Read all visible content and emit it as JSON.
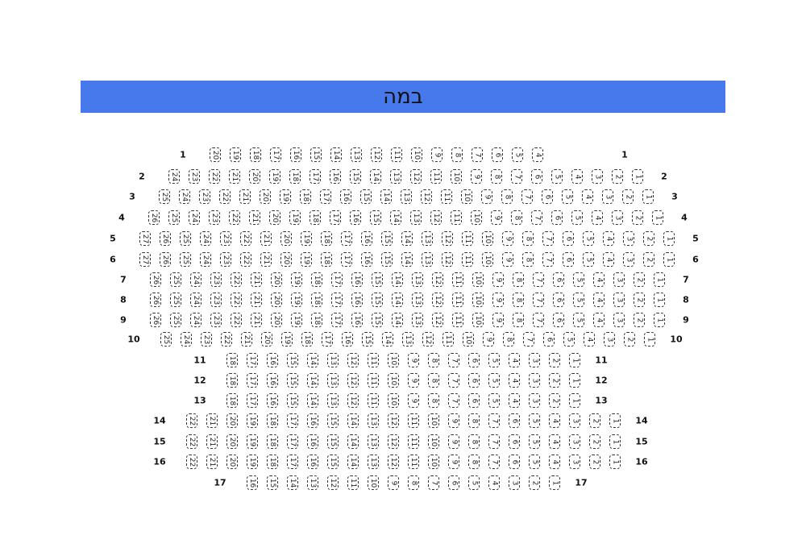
{
  "stage": {
    "label": "במה",
    "color": "#4779ED"
  },
  "rows": [
    {
      "label": "1",
      "seats": [
        20,
        19,
        18,
        17,
        16,
        15,
        14,
        13,
        12,
        11,
        10,
        9,
        8,
        7,
        6,
        5,
        4
      ]
    },
    {
      "label": "2",
      "seats": [
        24,
        23,
        22,
        21,
        20,
        19,
        18,
        17,
        16,
        15,
        14,
        13,
        12,
        11,
        10,
        9,
        8,
        7,
        6,
        5,
        4,
        3,
        2,
        1
      ]
    },
    {
      "label": "3",
      "seats": [
        25,
        24,
        23,
        22,
        21,
        20,
        19,
        18,
        17,
        16,
        15,
        14,
        13,
        12,
        11,
        10,
        9,
        8,
        7,
        6,
        5,
        4,
        3,
        2,
        1
      ]
    },
    {
      "label": "4",
      "seats": [
        26,
        25,
        24,
        23,
        22,
        21,
        20,
        19,
        18,
        17,
        16,
        15,
        14,
        13,
        12,
        11,
        10,
        9,
        8,
        7,
        6,
        5,
        4,
        3,
        2,
        1
      ]
    },
    {
      "label": "5",
      "seats": [
        27,
        26,
        25,
        24,
        23,
        22,
        21,
        20,
        19,
        18,
        17,
        16,
        15,
        14,
        13,
        12,
        11,
        10,
        9,
        8,
        7,
        6,
        5,
        4,
        3,
        2,
        1
      ]
    },
    {
      "label": "6",
      "seats": [
        27,
        26,
        25,
        24,
        23,
        22,
        21,
        20,
        19,
        18,
        17,
        16,
        15,
        14,
        13,
        12,
        11,
        10,
        9,
        8,
        7,
        6,
        5,
        4,
        3,
        2,
        1
      ]
    },
    {
      "label": "7",
      "seats": [
        26,
        25,
        24,
        23,
        22,
        21,
        20,
        19,
        18,
        17,
        16,
        15,
        14,
        13,
        12,
        11,
        10,
        9,
        8,
        7,
        6,
        5,
        4,
        3,
        2,
        1
      ]
    },
    {
      "label": "8",
      "seats": [
        26,
        25,
        24,
        23,
        22,
        21,
        20,
        19,
        18,
        17,
        16,
        15,
        14,
        13,
        12,
        11,
        10,
        9,
        8,
        7,
        6,
        5,
        4,
        3,
        2,
        1
      ]
    },
    {
      "label": "9",
      "seats": [
        26,
        25,
        24,
        23,
        22,
        21,
        20,
        19,
        18,
        17,
        16,
        15,
        14,
        13,
        12,
        11,
        10,
        9,
        8,
        7,
        6,
        5,
        4,
        3,
        2,
        1
      ]
    },
    {
      "label": "10",
      "seats": [
        25,
        24,
        23,
        22,
        21,
        20,
        19,
        18,
        17,
        16,
        15,
        14,
        13,
        12,
        11,
        10,
        9,
        8,
        7,
        6,
        5,
        4,
        3,
        2,
        1
      ]
    },
    {
      "label": "11",
      "seats": [
        18,
        17,
        16,
        15,
        14,
        13,
        12,
        11,
        10,
        9,
        8,
        7,
        6,
        5,
        4,
        3,
        2,
        1
      ]
    },
    {
      "label": "12",
      "seats": [
        18,
        17,
        16,
        15,
        14,
        13,
        12,
        11,
        10,
        9,
        8,
        7,
        6,
        5,
        4,
        3,
        2,
        1
      ]
    },
    {
      "label": "13",
      "seats": [
        18,
        17,
        16,
        15,
        14,
        13,
        12,
        11,
        10,
        9,
        8,
        7,
        6,
        5,
        4,
        3,
        2,
        1
      ]
    },
    {
      "label": "14",
      "seats": [
        22,
        21,
        20,
        19,
        18,
        17,
        16,
        15,
        14,
        13,
        12,
        11,
        10,
        9,
        8,
        7,
        6,
        5,
        4,
        3,
        2,
        1
      ]
    },
    {
      "label": "15",
      "seats": [
        22,
        21,
        20,
        19,
        18,
        17,
        16,
        15,
        14,
        13,
        12,
        11,
        10,
        9,
        8,
        7,
        6,
        5,
        4,
        3,
        2,
        1
      ]
    },
    {
      "label": "16",
      "seats": [
        22,
        21,
        20,
        19,
        18,
        17,
        16,
        15,
        14,
        13,
        12,
        11,
        10,
        9,
        8,
        7,
        6,
        5,
        4,
        3,
        2,
        1
      ]
    },
    {
      "label": "17",
      "seats": [
        16,
        15,
        14,
        13,
        12,
        11,
        10,
        9,
        8,
        7,
        6,
        5,
        4,
        3,
        2,
        1
      ]
    }
  ]
}
